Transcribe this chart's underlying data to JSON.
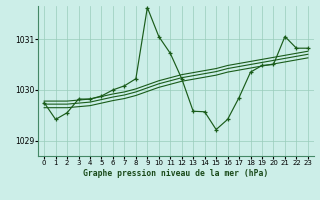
{
  "title": "Graphe pression niveau de la mer (hPa)",
  "background_color": "#cceee8",
  "grid_color": "#99ccbb",
  "line_color": "#1a5c1a",
  "xlim": [
    -0.5,
    23.5
  ],
  "ylim": [
    1028.7,
    1031.65
  ],
  "yticks": [
    1029,
    1030,
    1031
  ],
  "xticks": [
    0,
    1,
    2,
    3,
    4,
    5,
    6,
    7,
    8,
    9,
    10,
    11,
    12,
    13,
    14,
    15,
    16,
    17,
    18,
    19,
    20,
    21,
    22,
    23
  ],
  "series1": [
    1029.75,
    1029.42,
    1029.55,
    1029.82,
    1029.82,
    1029.88,
    1030.0,
    1030.08,
    1030.22,
    1031.62,
    1031.05,
    1030.72,
    1030.22,
    1029.58,
    1029.57,
    1029.22,
    1029.42,
    1029.85,
    1030.35,
    1030.48,
    1030.5,
    1031.05,
    1030.82,
    1030.82
  ],
  "series2": [
    1029.78,
    1029.78,
    1029.78,
    1029.8,
    1029.82,
    1029.87,
    1029.92,
    1029.96,
    1030.02,
    1030.1,
    1030.18,
    1030.24,
    1030.3,
    1030.34,
    1030.38,
    1030.42,
    1030.48,
    1030.52,
    1030.56,
    1030.6,
    1030.64,
    1030.68,
    1030.72,
    1030.76
  ],
  "series3": [
    1029.72,
    1029.72,
    1029.72,
    1029.74,
    1029.76,
    1029.81,
    1029.86,
    1029.9,
    1029.96,
    1030.04,
    1030.12,
    1030.18,
    1030.24,
    1030.28,
    1030.32,
    1030.36,
    1030.42,
    1030.46,
    1030.5,
    1030.54,
    1030.58,
    1030.62,
    1030.66,
    1030.7
  ],
  "series4": [
    1029.65,
    1029.65,
    1029.65,
    1029.67,
    1029.69,
    1029.74,
    1029.79,
    1029.83,
    1029.89,
    1029.97,
    1030.05,
    1030.11,
    1030.17,
    1030.21,
    1030.25,
    1030.29,
    1030.35,
    1030.39,
    1030.43,
    1030.47,
    1030.51,
    1030.55,
    1030.59,
    1030.63
  ]
}
